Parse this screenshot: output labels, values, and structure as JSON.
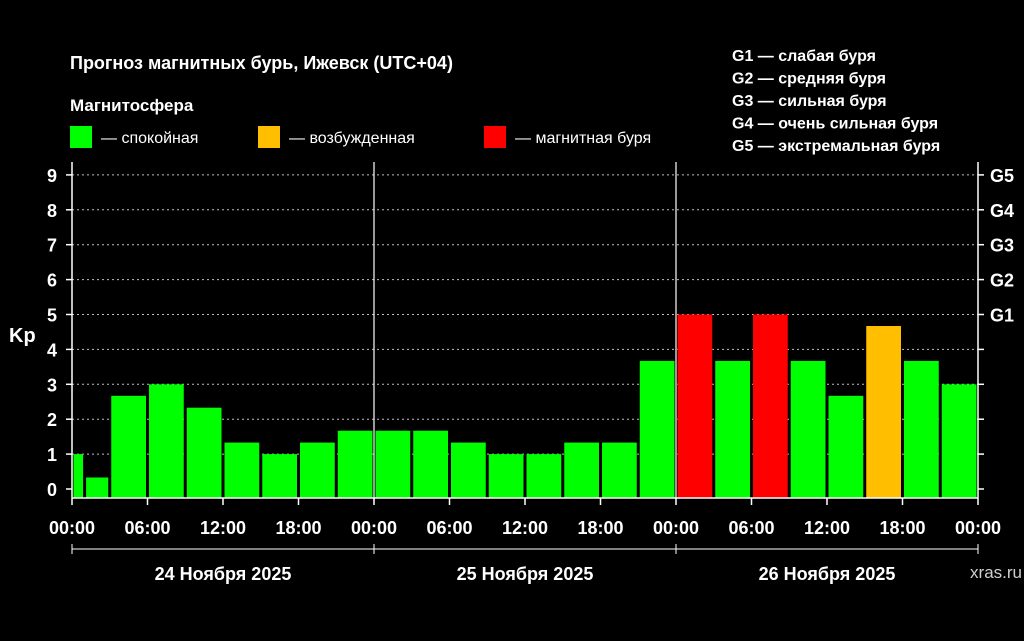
{
  "chart_data": {
    "type": "bar",
    "title": "Прогноз магнитных бурь, Ижевск (UTC+04)",
    "legend_title": "Магнитосфера",
    "legend": [
      {
        "label": "— спокойная",
        "color": "#00ff00"
      },
      {
        "label": "— возбужденная",
        "color": "#ffbf00"
      },
      {
        "label": "— магнитная буря",
        "color": "#ff0000"
      }
    ],
    "g_scale": [
      "G1 — слабая буря",
      "G2 — средняя буря",
      "G3 — сильная буря",
      "G4 — очень сильная буря",
      "G5 — экстремальная буря"
    ],
    "ylabel": "Kp",
    "ylim": [
      0,
      9
    ],
    "y_ticks": [
      "0",
      "1",
      "2",
      "3",
      "4",
      "5",
      "6",
      "7",
      "8",
      "9"
    ],
    "right_ticks": [
      {
        "value": 5,
        "label": "G1"
      },
      {
        "value": 6,
        "label": "G2"
      },
      {
        "value": 7,
        "label": "G3"
      },
      {
        "value": 8,
        "label": "G4"
      },
      {
        "value": 9,
        "label": "G5"
      }
    ],
    "x_tick_labels": [
      "00:00",
      "06:00",
      "12:00",
      "18:00",
      "00:00",
      "06:00",
      "12:00",
      "18:00",
      "00:00",
      "06:00",
      "12:00",
      "18:00",
      "00:00"
    ],
    "days": [
      "24 Ноября 2025",
      "25 Ноября 2025",
      "26 Ноября 2025"
    ],
    "bars": [
      {
        "start_hour": 0,
        "end_hour": 1,
        "value": 1.0,
        "level": "quiet"
      },
      {
        "start_hour": 1,
        "end_hour": 3,
        "value": 0.33,
        "level": "quiet"
      },
      {
        "start_hour": 3,
        "end_hour": 6,
        "value": 2.67,
        "level": "quiet"
      },
      {
        "start_hour": 6,
        "end_hour": 9,
        "value": 3.0,
        "level": "quiet"
      },
      {
        "start_hour": 9,
        "end_hour": 12,
        "value": 2.33,
        "level": "quiet"
      },
      {
        "start_hour": 12,
        "end_hour": 15,
        "value": 1.33,
        "level": "quiet"
      },
      {
        "start_hour": 15,
        "end_hour": 18,
        "value": 1.0,
        "level": "quiet"
      },
      {
        "start_hour": 18,
        "end_hour": 21,
        "value": 1.33,
        "level": "quiet"
      },
      {
        "start_hour": 21,
        "end_hour": 24,
        "value": 1.67,
        "level": "quiet"
      },
      {
        "start_hour": 24,
        "end_hour": 27,
        "value": 1.67,
        "level": "quiet"
      },
      {
        "start_hour": 27,
        "end_hour": 30,
        "value": 1.67,
        "level": "quiet"
      },
      {
        "start_hour": 30,
        "end_hour": 33,
        "value": 1.33,
        "level": "quiet"
      },
      {
        "start_hour": 33,
        "end_hour": 36,
        "value": 1.0,
        "level": "quiet"
      },
      {
        "start_hour": 36,
        "end_hour": 39,
        "value": 1.0,
        "level": "quiet"
      },
      {
        "start_hour": 39,
        "end_hour": 42,
        "value": 1.33,
        "level": "quiet"
      },
      {
        "start_hour": 42,
        "end_hour": 45,
        "value": 1.33,
        "level": "quiet"
      },
      {
        "start_hour": 45,
        "end_hour": 48,
        "value": 3.67,
        "level": "quiet"
      },
      {
        "start_hour": 48,
        "end_hour": 51,
        "value": 5.0,
        "level": "storm"
      },
      {
        "start_hour": 51,
        "end_hour": 54,
        "value": 3.67,
        "level": "quiet"
      },
      {
        "start_hour": 54,
        "end_hour": 57,
        "value": 5.0,
        "level": "storm"
      },
      {
        "start_hour": 57,
        "end_hour": 60,
        "value": 3.67,
        "level": "quiet"
      },
      {
        "start_hour": 60,
        "end_hour": 63,
        "value": 2.67,
        "level": "quiet"
      },
      {
        "start_hour": 63,
        "end_hour": 66,
        "value": 4.67,
        "level": "active"
      },
      {
        "start_hour": 66,
        "end_hour": 69,
        "value": 3.67,
        "level": "quiet"
      },
      {
        "start_hour": 69,
        "end_hour": 72,
        "value": 3.0,
        "level": "quiet"
      }
    ],
    "colors": {
      "quiet": "#00ff00",
      "active": "#ffbf00",
      "storm": "#ff0000",
      "background": "#000000",
      "grid": "#ffffff"
    },
    "grid": true,
    "watermark": "xras.ru"
  }
}
